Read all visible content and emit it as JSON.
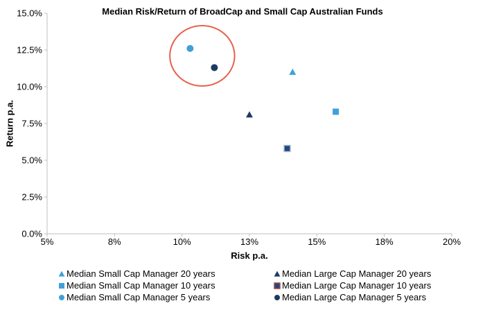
{
  "chart_data": {
    "type": "scatter",
    "title": "Median Risk/Return of BroadCap and Small Cap Australian Funds",
    "xlabel": "Risk p.a.",
    "ylabel": "Return p.a.",
    "xlim": [
      5,
      20
    ],
    "ylim": [
      0,
      15
    ],
    "grid": false,
    "legend_position": "bottom-two-columns",
    "x_ticks": [
      {
        "value": 5,
        "label": "5%"
      },
      {
        "value": 7.5,
        "label": "8%"
      },
      {
        "value": 10,
        "label": "10%"
      },
      {
        "value": 12.5,
        "label": "13%"
      },
      {
        "value": 15,
        "label": "15%"
      },
      {
        "value": 17.5,
        "label": "18%"
      },
      {
        "value": 20,
        "label": "20%"
      }
    ],
    "y_ticks": [
      {
        "value": 0,
        "label": "0.0%"
      },
      {
        "value": 2.5,
        "label": "2.5%"
      },
      {
        "value": 5,
        "label": "5.0%"
      },
      {
        "value": 7.5,
        "label": "7.5%"
      },
      {
        "value": 10,
        "label": "10.0%"
      },
      {
        "value": 12.5,
        "label": "12.5%"
      },
      {
        "value": 15,
        "label": "15.0%"
      }
    ],
    "series": [
      {
        "name": "Median Small Cap Manager 20 years",
        "marker": "triangle",
        "color": "#41A0D8",
        "x": 14.1,
        "y": 11.0
      },
      {
        "name": "Median Large Cap Manager 20 years",
        "marker": "triangle",
        "color": "#1F3864",
        "x": 12.5,
        "y": 8.1
      },
      {
        "name": "Median Small Cap Manager 10 years",
        "marker": "square",
        "color": "#41A0D8",
        "x": 15.7,
        "y": 8.3
      },
      {
        "name": "Median Large Cap Manager 10 years",
        "marker": "square",
        "color": "#24477B",
        "border": "#A9BCD4",
        "legend_border": "#9E4B45",
        "x": 13.9,
        "y": 5.8
      },
      {
        "name": "Median Small Cap Manager 5 years",
        "marker": "circle",
        "color": "#41A0D8",
        "x": 10.3,
        "y": 12.6
      },
      {
        "name": "Median Large Cap Manager 5 years",
        "marker": "circle",
        "color": "#1E3A5F",
        "x": 11.2,
        "y": 11.3
      }
    ],
    "legend_columns": [
      [
        0,
        2,
        4
      ],
      [
        1,
        3,
        5
      ]
    ],
    "annotation": {
      "shape": "ellipse",
      "cx": 10.75,
      "cy": 12.1,
      "rx": 1.2,
      "ry": 2.05,
      "stroke": "#E8604C",
      "stroke_width": 2
    }
  },
  "colors": {
    "axis": "#BFBFBF",
    "text": "#000000",
    "background": "#FFFFFF",
    "small_cap_accent": "#41A0D8",
    "large_cap_accent": "#1F3864",
    "annotation_accent": "#E8604C"
  }
}
